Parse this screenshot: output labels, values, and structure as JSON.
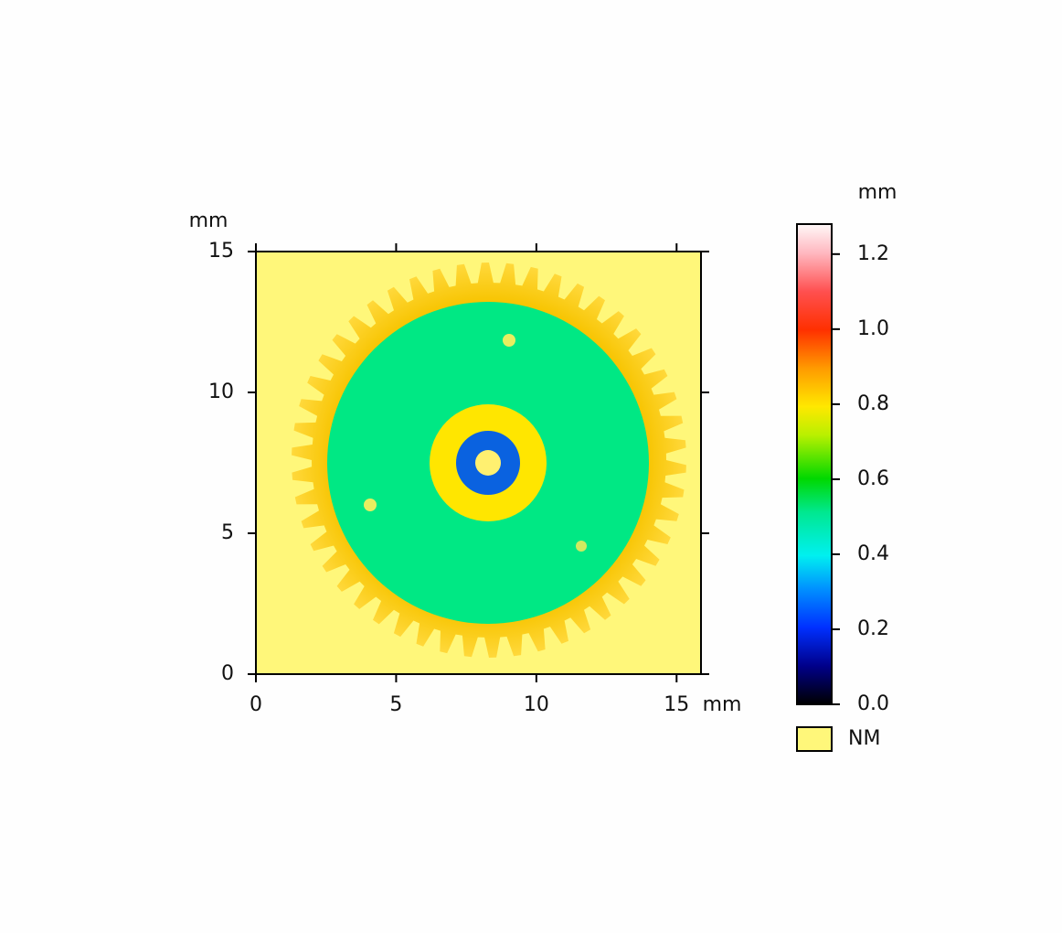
{
  "chart_data": {
    "type": "heatmap",
    "x_label": "mm",
    "y_label": "mm",
    "xlim": [
      0,
      15.87
    ],
    "ylim": [
      0,
      15
    ],
    "xticks": [
      0,
      5,
      10,
      15
    ],
    "yticks": [
      0,
      5,
      10,
      15
    ],
    "colorbar": {
      "label": "mm",
      "lim": [
        0,
        1.28
      ],
      "ticks": [
        {
          "value": 0,
          "label": "0.0"
        },
        {
          "value": 0.2,
          "label": "0.2"
        },
        {
          "value": 0.4,
          "label": "0.4"
        },
        {
          "value": 0.6,
          "label": "0.6"
        },
        {
          "value": 0.8,
          "label": "0.8"
        },
        {
          "value": 1,
          "label": "1.0"
        },
        {
          "value": 1.2,
          "label": "1.2"
        }
      ]
    },
    "legend": [
      {
        "name": "NM",
        "color": "#fff77a"
      }
    ]
  }
}
